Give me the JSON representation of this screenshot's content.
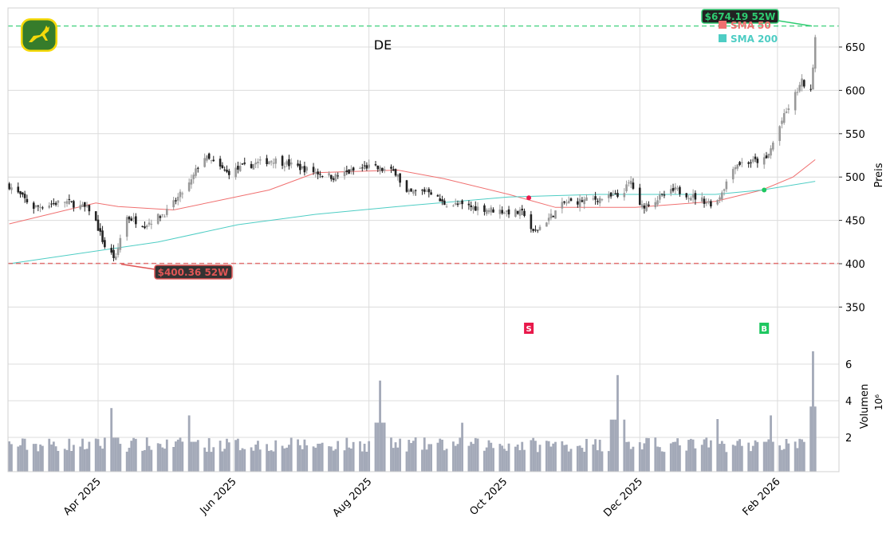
{
  "chart_data": {
    "type": "candlestick",
    "title": "DE",
    "ylabel": "Preis",
    "ylim": [
      300,
      695
    ],
    "yticks": [
      350,
      400,
      450,
      500,
      550,
      600,
      650
    ],
    "xticks": [
      {
        "date": "2025-04-01",
        "label": "Apr 2025"
      },
      {
        "date": "2025-06-01",
        "label": "Jun 2025"
      },
      {
        "date": "2025-08-01",
        "label": "Aug 2025"
      },
      {
        "date": "2025-10-01",
        "label": "Oct 2025"
      },
      {
        "date": "2025-12-01",
        "label": "Dec 2025"
      },
      {
        "date": "2026-02-01",
        "label": "Feb 2026"
      }
    ],
    "xlim": [
      "2025-02-19",
      "2026-02-28"
    ],
    "grid": true,
    "close_path": [
      [
        "2025-02-20",
        490
      ],
      [
        "2025-03-03",
        465
      ],
      [
        "2025-03-17",
        472
      ],
      [
        "2025-03-29",
        462
      ],
      [
        "2025-04-04",
        420
      ],
      [
        "2025-04-09",
        405
      ],
      [
        "2025-04-13",
        455
      ],
      [
        "2025-04-22",
        445
      ],
      [
        "2025-05-02",
        460
      ],
      [
        "2025-05-13",
        495
      ],
      [
        "2025-05-18",
        525
      ],
      [
        "2025-05-29",
        505
      ],
      [
        "2025-06-10",
        515
      ],
      [
        "2025-06-19",
        520
      ],
      [
        "2025-07-02",
        510
      ],
      [
        "2025-07-16",
        500
      ],
      [
        "2025-07-31",
        512
      ],
      [
        "2025-08-14",
        505
      ],
      [
        "2025-08-16",
        480
      ],
      [
        "2025-08-28",
        485
      ],
      [
        "2025-09-03",
        470
      ],
      [
        "2025-09-26",
        462
      ],
      [
        "2025-10-10",
        458
      ],
      [
        "2025-10-14",
        435
      ],
      [
        "2025-10-28",
        470
      ],
      [
        "2025-11-22",
        478
      ],
      [
        "2025-11-27",
        495
      ],
      [
        "2025-12-01",
        465
      ],
      [
        "2025-12-17",
        485
      ],
      [
        "2026-01-04",
        468
      ],
      [
        "2026-01-13",
        515
      ],
      [
        "2026-01-27",
        520
      ],
      [
        "2026-02-03",
        565
      ],
      [
        "2026-02-12",
        610
      ],
      [
        "2026-02-16",
        598
      ],
      [
        "2026-02-18",
        662
      ]
    ],
    "sma": [
      {
        "name": "SMA 50",
        "color": "#f07070",
        "points": [
          [
            "2025-02-20",
            446
          ],
          [
            "2025-03-31",
            470
          ],
          [
            "2025-04-10",
            466
          ],
          [
            "2025-05-05",
            462
          ],
          [
            "2025-06-17",
            485
          ],
          [
            "2025-07-08",
            505
          ],
          [
            "2025-08-14",
            508
          ],
          [
            "2025-09-04",
            498
          ],
          [
            "2025-10-03",
            480
          ],
          [
            "2025-10-24",
            465
          ],
          [
            "2025-11-29",
            465
          ],
          [
            "2026-01-04",
            472
          ],
          [
            "2026-01-25",
            485
          ],
          [
            "2026-02-08",
            500
          ],
          [
            "2026-02-18",
            520
          ]
        ]
      },
      {
        "name": "SMA 200",
        "color": "#4ecdc4",
        "points": [
          [
            "2025-02-20",
            400
          ],
          [
            "2025-04-28",
            425
          ],
          [
            "2025-06-03",
            445
          ],
          [
            "2025-07-08",
            457
          ],
          [
            "2025-08-14",
            466
          ],
          [
            "2025-10-03",
            477
          ],
          [
            "2025-11-12",
            480
          ],
          [
            "2026-01-04",
            480
          ],
          [
            "2026-01-25",
            485
          ],
          [
            "2026-02-18",
            495
          ]
        ]
      }
    ],
    "high_52w": {
      "value": 674.19,
      "label": "$674.19 52W",
      "date": "2026-02-18",
      "color": "#2ecc71"
    },
    "low_52w": {
      "value": 400.36,
      "label": "$400.36 52W",
      "date": "2025-04-09",
      "color": "#e05555"
    },
    "signals": [
      {
        "type": "sell",
        "label": "S",
        "date": "2025-10-12",
        "price": 476,
        "color": "#e8194b"
      },
      {
        "type": "buy",
        "label": "B",
        "date": "2026-01-26",
        "price": 485,
        "color": "#1ec760"
      }
    ],
    "volume": {
      "ylabel": "Volumen",
      "unit": "10⁶",
      "yticks": [
        2,
        4,
        6
      ],
      "spikes": [
        [
          "2025-04-07",
          3.6
        ],
        [
          "2025-05-12",
          3.2
        ],
        [
          "2025-08-06",
          5.1
        ],
        [
          "2025-09-12",
          2.8
        ],
        [
          "2025-11-21",
          5.4
        ],
        [
          "2026-01-05",
          3.0
        ],
        [
          "2026-01-29",
          3.2
        ],
        [
          "2026-02-17",
          6.7
        ]
      ],
      "base": 1.2
    }
  },
  "logo": {
    "text": "John Deere"
  }
}
